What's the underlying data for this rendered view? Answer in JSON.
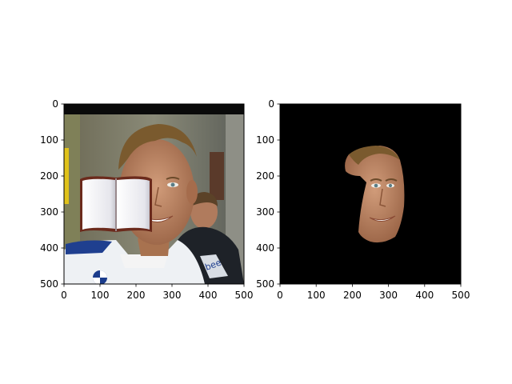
{
  "panels": [
    {
      "name": "original-image-panel",
      "xlim": [
        0,
        500
      ],
      "ylim": [
        500,
        0
      ],
      "xticks": [
        {
          "value": 0,
          "label": "0"
        },
        {
          "value": 100,
          "label": "100"
        },
        {
          "value": 200,
          "label": "200"
        },
        {
          "value": 300,
          "label": "300"
        },
        {
          "value": 400,
          "label": "400"
        },
        {
          "value": 500,
          "label": "500"
        }
      ],
      "yticks": [
        {
          "value": 0,
          "label": "0"
        },
        {
          "value": 100,
          "label": "100"
        },
        {
          "value": 200,
          "label": "200"
        },
        {
          "value": 300,
          "label": "300"
        },
        {
          "value": 400,
          "label": "400"
        },
        {
          "value": 500,
          "label": "500"
        }
      ]
    },
    {
      "name": "masked-face-panel",
      "xlim": [
        0,
        500
      ],
      "ylim": [
        500,
        0
      ],
      "xticks": [
        {
          "value": 0,
          "label": "0"
        },
        {
          "value": 100,
          "label": "100"
        },
        {
          "value": 200,
          "label": "200"
        },
        {
          "value": 300,
          "label": "300"
        },
        {
          "value": 400,
          "label": "400"
        },
        {
          "value": 500,
          "label": "500"
        }
      ],
      "yticks": [
        {
          "value": 0,
          "label": "0"
        },
        {
          "value": 100,
          "label": "100"
        },
        {
          "value": 200,
          "label": "200"
        },
        {
          "value": 300,
          "label": "300"
        },
        {
          "value": 400,
          "label": "400"
        },
        {
          "value": 500,
          "label": "500"
        }
      ]
    }
  ],
  "colors": {
    "background": "#ffffff",
    "mask_background": "#000000",
    "skin": "#b98565",
    "hair": "#7a5a2e",
    "suit": "#eef1f4",
    "sponsor_blue": "#1f3f8f",
    "book_page": "#f4f4f7",
    "book_cover": "#6b2a1c"
  },
  "icons": [
    "open-book-icon"
  ]
}
